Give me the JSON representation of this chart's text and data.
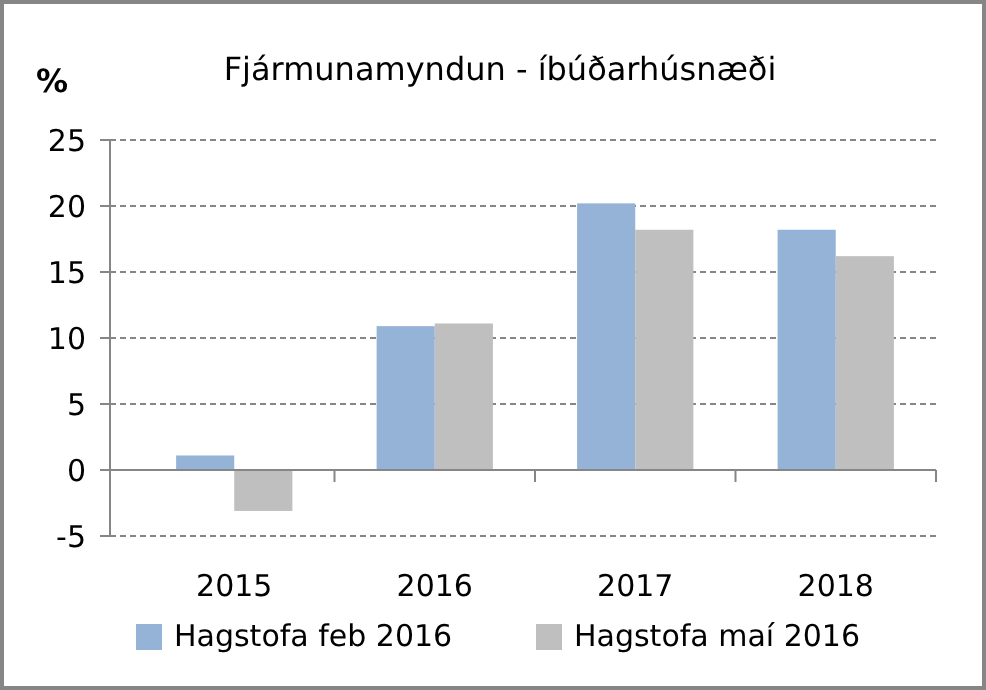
{
  "chart_data": {
    "type": "bar",
    "title": "Fjármunamyndun - íbúðarhúsnæði",
    "ylabel": "%",
    "categories": [
      "2015",
      "2016",
      "2017",
      "2018"
    ],
    "series": [
      {
        "name": "Hagstofa feb 2016",
        "color": "#95b3d7",
        "values": [
          1.1,
          10.9,
          20.2,
          18.2
        ]
      },
      {
        "name": "Hagstofa maí 2016",
        "color": "#bfbfbf",
        "values": [
          -3.1,
          11.1,
          18.2,
          16.2
        ]
      }
    ],
    "ylim": [
      -5,
      25
    ],
    "yticks": [
      -5,
      0,
      5,
      10,
      15,
      20,
      25
    ],
    "grid": "y",
    "legend": "bottom"
  }
}
